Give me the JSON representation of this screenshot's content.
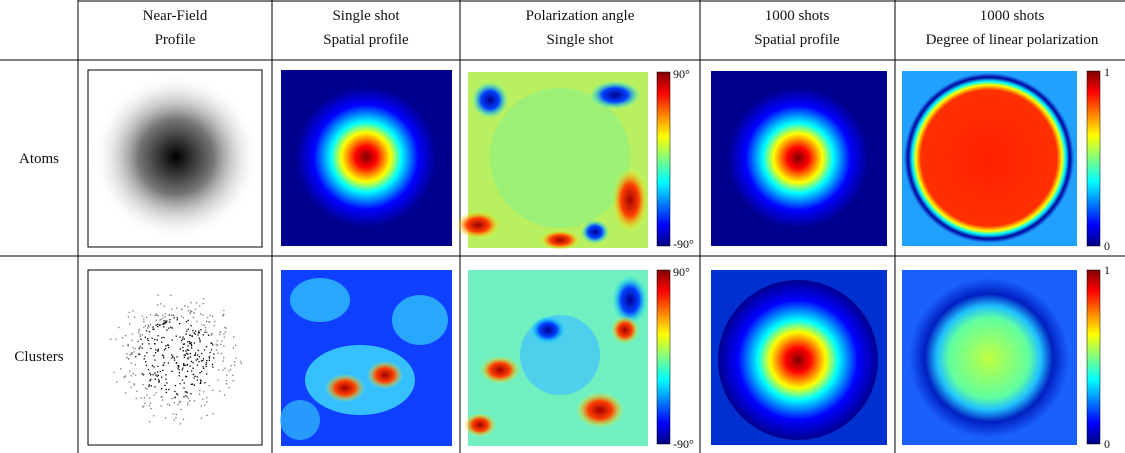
{
  "table": {
    "headers": [
      [
        "Near-Field",
        "Profile"
      ],
      [
        "Single shot",
        "Spatial profile"
      ],
      [
        "Polarization angle",
        "Single shot"
      ],
      [
        "1000 shots",
        "Spatial profile"
      ],
      [
        "1000 shots",
        "Degree of linear polarization"
      ]
    ],
    "rows": [
      "Atoms",
      "Clusters"
    ],
    "angle_colorbar": [
      "90°",
      "-90°"
    ],
    "dolp_colorbar": [
      "1",
      "0"
    ]
  }
}
